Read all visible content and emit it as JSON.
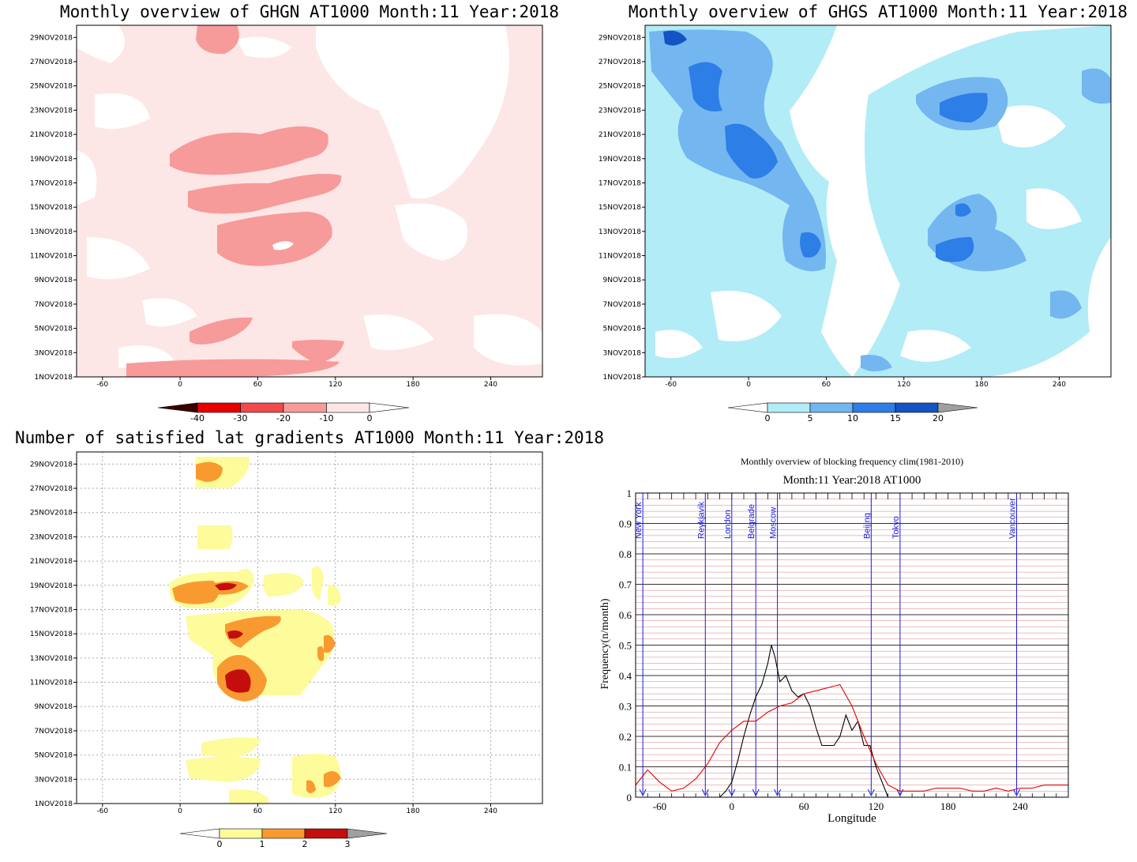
{
  "panels": [
    {
      "title": "Monthly overview of GHGN AT1000 Month:11 Year:2018",
      "y_ticks": [
        "29NOV2018",
        "27NOV2018",
        "25NOV2018",
        "23NOV2018",
        "21NOV2018",
        "19NOV2018",
        "17NOV2018",
        "15NOV2018",
        "13NOV2018",
        "11NOV2018",
        "9NOV2018",
        "7NOV2018",
        "5NOV2018",
        "3NOV2018",
        "1NOV2018"
      ],
      "x_ticks": [
        "-60",
        "0",
        "60",
        "120",
        "180",
        "240"
      ],
      "colorbar": {
        "labels": [
          "-40",
          "-30",
          "-20",
          "-10",
          "0"
        ],
        "colors": [
          "#6b0000",
          "#e60000",
          "#f04a4a",
          "#f79a9a",
          "#fde6e6"
        ]
      }
    },
    {
      "title": "Monthly overview of GHGS AT1000 Month:11 Year:2018",
      "y_ticks": [
        "29NOV2018",
        "27NOV2018",
        "25NOV2018",
        "23NOV2018",
        "21NOV2018",
        "19NOV2018",
        "17NOV2018",
        "15NOV2018",
        "13NOV2018",
        "11NOV2018",
        "9NOV2018",
        "7NOV2018",
        "5NOV2018",
        "3NOV2018",
        "1NOV2018"
      ],
      "x_ticks": [
        "-60",
        "0",
        "60",
        "120",
        "180",
        "240"
      ],
      "colorbar": {
        "labels": [
          "0",
          "5",
          "10",
          "15",
          "20"
        ],
        "colors": [
          "#b2ecf6",
          "#74b6f0",
          "#2d7ee6",
          "#1454c2"
        ]
      }
    },
    {
      "title": "Number of satisfied lat gradients AT1000 Month:11 Year:2018",
      "y_ticks": [
        "29NOV2018",
        "27NOV2018",
        "25NOV2018",
        "23NOV2018",
        "21NOV2018",
        "19NOV2018",
        "17NOV2018",
        "15NOV2018",
        "13NOV2018",
        "11NOV2018",
        "9NOV2018",
        "7NOV2018",
        "5NOV2018",
        "3NOV2018",
        "1NOV2018"
      ],
      "x_ticks": [
        "-60",
        "0",
        "60",
        "120",
        "180",
        "240"
      ],
      "colorbar": {
        "labels": [
          "0",
          "1",
          "2",
          "3"
        ],
        "colors": [
          "#fdfb9a",
          "#f99a30",
          "#c40e0e"
        ]
      }
    }
  ],
  "line_panel": {
    "title_line1": "Monthly overview of blocking frequency clim(1981-2010)",
    "title_line2": "Month:11 Year:2018  AT1000",
    "xlabel": "Longitude",
    "ylabel": "Frequency(n/month)",
    "x_ticks": [
      "-60",
      "0",
      "60",
      "120",
      "180",
      "240"
    ],
    "y_ticks": [
      "0",
      "0.1",
      "0.2",
      "0.3",
      "0.4",
      "0.5",
      "0.6",
      "0.7",
      "0.8",
      "0.9",
      "1"
    ],
    "cities": [
      {
        "name": "New York",
        "lon": -74
      },
      {
        "name": "Reykjavik",
        "lon": -22
      },
      {
        "name": "London",
        "lon": 0
      },
      {
        "name": "Belgrade",
        "lon": 20
      },
      {
        "name": "Moscow",
        "lon": 38
      },
      {
        "name": "Beijing",
        "lon": 116
      },
      {
        "name": "Tokyo",
        "lon": 140
      },
      {
        "name": "Vancouver",
        "lon": 237
      }
    ]
  },
  "chart_data": [
    {
      "type": "heatmap",
      "title": "Monthly overview of GHGN AT1000 Month:11 Year:2018",
      "x_range": [
        -80,
        280
      ],
      "y_range": [
        "1NOV2018",
        "30NOV2018"
      ],
      "levels": [
        -40,
        -30,
        -20,
        -10,
        0
      ],
      "filled_regions": [
        {
          "level": "-10 to 0",
          "lon": [
            -80,
            280
          ],
          "days": [
            1,
            30
          ],
          "note_coverage": "most of domain"
        },
        {
          "level": "-20 to -10",
          "lon": [
            15,
            95
          ],
          "days": [
            13,
            21
          ]
        },
        {
          "level": "-20 to -10",
          "lon": [
            30,
            55
          ],
          "days": [
            27,
            30
          ]
        },
        {
          "level": "-20 to -10",
          "lon": [
            10,
            120
          ],
          "days": [
            2,
            6
          ]
        }
      ]
    },
    {
      "type": "heatmap",
      "title": "Monthly overview of GHGS AT1000 Month:11 Year:2018",
      "x_range": [
        -80,
        280
      ],
      "y_range": [
        "1NOV2018",
        "30NOV2018"
      ],
      "levels": [
        0,
        5,
        10,
        15,
        20
      ],
      "filled_regions": [
        {
          "level": "0 to 5",
          "lon": [
            -80,
            280
          ],
          "days": [
            1,
            30
          ],
          "note_coverage": "widespread"
        },
        {
          "level": "5 to 10",
          "lon": [
            -80,
            60
          ],
          "days": [
            15,
            30
          ]
        },
        {
          "level": "10 to 15",
          "lon": [
            -60,
            20
          ],
          "days": [
            18,
            27
          ]
        },
        {
          "level": "15 to 20",
          "lon": [
            -60,
            -45
          ],
          "days": [
            28,
            30
          ]
        },
        {
          "level": "10 to 15",
          "lon": [
            40,
            55
          ],
          "days": [
            10,
            12
          ]
        },
        {
          "level": "10 to 15",
          "lon": [
            140,
            200
          ],
          "days": [
            10,
            15
          ]
        },
        {
          "level": "10 to 15",
          "lon": [
            150,
            190
          ],
          "days": [
            22,
            24
          ]
        }
      ]
    },
    {
      "type": "heatmap",
      "title": "Number of satisfied lat gradients AT1000 Month:11 Year:2018",
      "x_range": [
        -80,
        280
      ],
      "y_range": [
        "1NOV2018",
        "30NOV2018"
      ],
      "levels": [
        0,
        1,
        2,
        3
      ],
      "filled_regions": [
        {
          "level": "1 to 2",
          "lon": [
            -10,
            60
          ],
          "days": [
            17,
            21
          ]
        },
        {
          "level": "2 to 3",
          "lon": [
            25,
            45
          ],
          "days": [
            19,
            19
          ]
        },
        {
          "level": "1 to 2",
          "lon": [
            25,
            90
          ],
          "days": [
            9,
            16
          ]
        },
        {
          "level": "2 to 3",
          "lon": [
            35,
            55
          ],
          "days": [
            10,
            12
          ]
        },
        {
          "level": "2 to 3",
          "lon": [
            38,
            48
          ],
          "days": [
            15,
            15
          ]
        },
        {
          "level": "0 to 1",
          "lon": [
            5,
            125
          ],
          "days": [
            2,
            22
          ]
        },
        {
          "level": "0 to 1",
          "lon": [
            10,
            55
          ],
          "days": [
            28,
            30
          ]
        },
        {
          "level": "1 to 2",
          "lon": [
            95,
            125
          ],
          "days": [
            2,
            4
          ]
        }
      ]
    },
    {
      "type": "line",
      "title": "Monthly overview of blocking frequency clim(1981-2010)",
      "xlabel": "Longitude",
      "ylabel": "Frequency(n/month)",
      "xlim": [
        -80,
        280
      ],
      "ylim": [
        0,
        1
      ],
      "series": [
        {
          "color": "#000000",
          "x": [
            -20,
            -15,
            -10,
            -5,
            0,
            5,
            10,
            15,
            20,
            25,
            30,
            33,
            36,
            40,
            45,
            50,
            55,
            60,
            65,
            70,
            75,
            80,
            85,
            90,
            95,
            100,
            105,
            110,
            115,
            120,
            125,
            130
          ],
          "y": [
            0,
            0,
            0,
            0.02,
            0.05,
            0.12,
            0.2,
            0.27,
            0.33,
            0.37,
            0.44,
            0.5,
            0.46,
            0.38,
            0.4,
            0.35,
            0.33,
            0.34,
            0.3,
            0.23,
            0.17,
            0.17,
            0.17,
            0.2,
            0.27,
            0.22,
            0.25,
            0.17,
            0.17,
            0.1,
            0.05,
            0
          ]
        },
        {
          "color": "#e00000",
          "x": [
            -80,
            -70,
            -60,
            -50,
            -40,
            -30,
            -20,
            -10,
            0,
            10,
            20,
            30,
            40,
            50,
            60,
            70,
            80,
            90,
            100,
            110,
            120,
            130,
            140,
            150,
            160,
            170,
            180,
            190,
            200,
            210,
            220,
            230,
            240,
            250,
            260,
            270,
            280
          ],
          "y": [
            0.04,
            0.09,
            0.05,
            0.02,
            0.03,
            0.06,
            0.11,
            0.18,
            0.22,
            0.25,
            0.25,
            0.28,
            0.3,
            0.31,
            0.34,
            0.35,
            0.36,
            0.37,
            0.3,
            0.2,
            0.11,
            0.04,
            0.02,
            0.02,
            0.02,
            0.03,
            0.03,
            0.03,
            0.02,
            0.02,
            0.03,
            0.02,
            0.03,
            0.03,
            0.04,
            0.04,
            0.04
          ]
        }
      ]
    }
  ]
}
